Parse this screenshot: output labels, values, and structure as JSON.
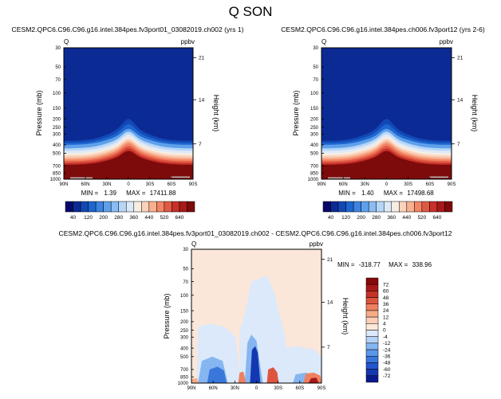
{
  "figure_title": "Q SON",
  "colors": {
    "sequential_scale": [
      "#08086b",
      "#0b2a94",
      "#1248b5",
      "#1e66cf",
      "#3c84e0",
      "#5fa0eb",
      "#8bbcf3",
      "#b6d6f8",
      "#dde9f8",
      "#f7ede2",
      "#fbd2bb",
      "#f8b08f",
      "#f28566",
      "#e05a43",
      "#c7312a",
      "#a81a18",
      "#7e0b0b"
    ],
    "difference_scale": [
      "#0a1a8c",
      "#1438b0",
      "#2257cc",
      "#3a77dc",
      "#5b96e8",
      "#86b6f1",
      "#b5d3f7",
      "#dbe9fa",
      "#fde9dc",
      "#fbd0b6",
      "#f6ab87",
      "#ee8060",
      "#de553f",
      "#c53228",
      "#a81818",
      "#870909"
    ]
  },
  "chart_data": [
    {
      "type": "heatmap",
      "title": "CESM2.QPC6.C96.C96.g16.intel.384pes.fv3port01_03082019.ch002 (yrs 1)",
      "variable_label": "Q",
      "units_label": "ppbv",
      "ylabel": "Pressure (mb)",
      "ylabel_right": "Height (km)",
      "x_ticks": [
        "90N",
        "60N",
        "30N",
        "0",
        "30S",
        "60S",
        "90S"
      ],
      "y_ticks": [
        "30",
        "50",
        "70",
        "100",
        "150",
        "200",
        "250",
        "300",
        "400",
        "500",
        "700",
        "850",
        "1000"
      ],
      "right_ticks": [
        "21",
        "14",
        "7"
      ],
      "min": 1.39,
      "max": 17411.88,
      "stats": {
        "min_label": "MIN =",
        "min": "1.39",
        "max_label": "MAX =",
        "max": "17411.88"
      },
      "colorbar_labels": [
        "40",
        "120",
        "200",
        "280",
        "360",
        "440",
        "520",
        "640"
      ]
    },
    {
      "type": "heatmap",
      "title": "CESM2.QPC6.C96.C96.g16.intel.384pes.ch006.fv3port12 (yrs 2-6)",
      "variable_label": "Q",
      "units_label": "ppbv",
      "ylabel": "Pressure (mb)",
      "ylabel_right": "Height (km)",
      "x_ticks": [
        "90N",
        "60N",
        "30N",
        "0",
        "30S",
        "60S",
        "90S"
      ],
      "y_ticks": [
        "30",
        "50",
        "70",
        "100",
        "150",
        "200",
        "250",
        "300",
        "400",
        "500",
        "700",
        "850",
        "1000"
      ],
      "right_ticks": [
        "21",
        "14",
        "7"
      ],
      "min": 1.4,
      "max": 17498.68,
      "stats": {
        "min_label": "MIN =",
        "min": "1.40",
        "max_label": "MAX =",
        "max": "17498.68"
      },
      "colorbar_labels": [
        "40",
        "120",
        "200",
        "280",
        "360",
        "440",
        "520",
        "640"
      ]
    },
    {
      "type": "heatmap",
      "title": "CESM2.QPC6.C96.C96.g16.intel.384pes.fv3port01_03082019.ch002 - CESM2.QPC6.C96.C96.g16.intel.384pes.ch006.fv3port12",
      "variable_label": "Q",
      "units_label": "ppbv",
      "ylabel": "Pressure (mb)",
      "ylabel_right": "Height (km)",
      "x_ticks": [
        "90N",
        "60N",
        "30N",
        "0",
        "30S",
        "60S",
        "90S"
      ],
      "y_ticks": [
        "30",
        "50",
        "70",
        "100",
        "150",
        "200",
        "250",
        "300",
        "400",
        "500",
        "700",
        "850",
        "1000"
      ],
      "right_ticks": [
        "21",
        "14",
        "7"
      ],
      "min": -318.77,
      "max": 338.96,
      "stats": {
        "min_label": "MIN =",
        "min": "-318.77",
        "max_label": "MAX =",
        "max": "338.96"
      },
      "colorbar_labels": [
        "72",
        "60",
        "48",
        "36",
        "24",
        "12",
        "4",
        "0",
        "-4",
        "-12",
        "-24",
        "-36",
        "-48",
        "-60",
        "-72"
      ]
    }
  ]
}
